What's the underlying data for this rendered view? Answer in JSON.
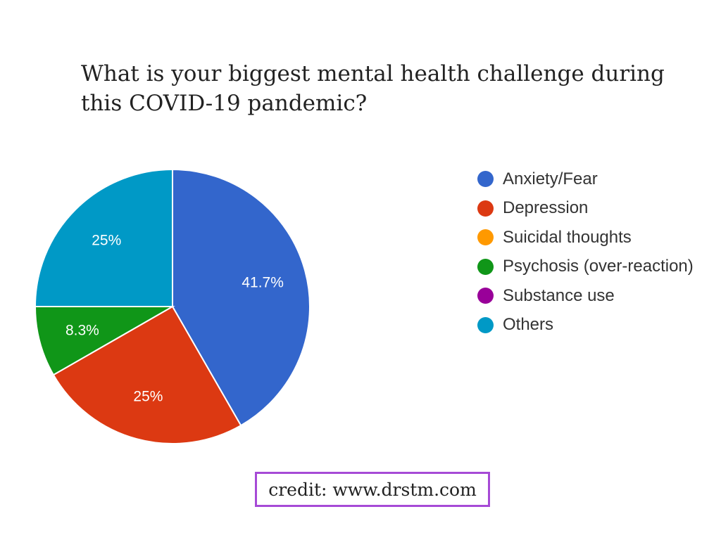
{
  "chart_data": {
    "type": "pie",
    "title_lines": [
      "What is your biggest mental health challenge during",
      "this COVID-19 pandemic?"
    ],
    "slices": [
      {
        "label": "Anxiety/Fear",
        "value": 41.7,
        "display": "41.7%",
        "color": "#3366cc"
      },
      {
        "label": "Depression",
        "value": 25,
        "display": "25%",
        "color": "#dc3912"
      },
      {
        "label": "Suicidal thoughts",
        "value": 0,
        "display": "",
        "color": "#ff9900"
      },
      {
        "label": "Psychosis (over-reaction)",
        "value": 8.3,
        "display": "8.3%",
        "color": "#109618"
      },
      {
        "label": "Substance use",
        "value": 0,
        "display": "",
        "color": "#990099"
      },
      {
        "label": "Others",
        "value": 25,
        "display": "25%",
        "color": "#0099c6"
      }
    ],
    "legend_position": "right"
  },
  "credit": "credit: www.drstm.com"
}
